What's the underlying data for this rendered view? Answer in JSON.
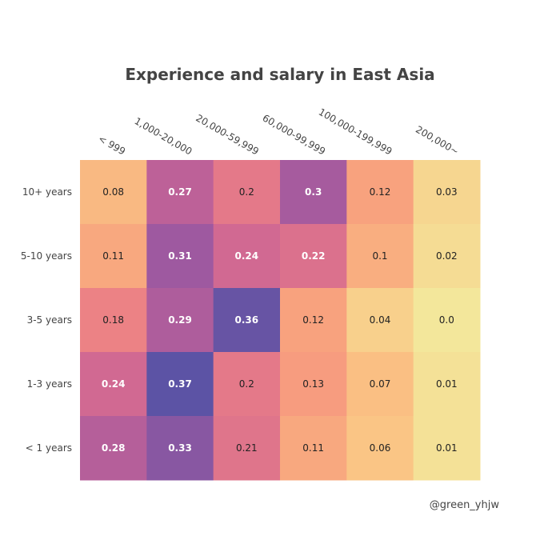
{
  "chart_data": {
    "type": "heatmap",
    "title": "Experience and salary in East Asia",
    "x_categories": [
      "< 999",
      "1,000-20,000",
      "20,000-59,999",
      "60,000-99,999",
      "100,000-199,999",
      "200,000~"
    ],
    "y_categories": [
      "10+ years",
      "5-10 years",
      "3-5 years",
      "1-3 years",
      "< 1 years"
    ],
    "x_axis_side": "top",
    "values": [
      [
        0.08,
        0.27,
        0.2,
        0.3,
        0.12,
        0.03
      ],
      [
        0.11,
        0.31,
        0.24,
        0.22,
        0.1,
        0.02
      ],
      [
        0.18,
        0.29,
        0.36,
        0.12,
        0.04,
        0.0
      ],
      [
        0.24,
        0.37,
        0.2,
        0.13,
        0.07,
        0.01
      ],
      [
        0.28,
        0.33,
        0.21,
        0.11,
        0.06,
        0.01
      ]
    ],
    "value_labels": [
      [
        "0.08",
        "0.27",
        "0.2",
        "0.3",
        "0.12",
        "0.03"
      ],
      [
        "0.11",
        "0.31",
        "0.24",
        "0.22",
        "0.1",
        "0.02"
      ],
      [
        "0.18",
        "0.29",
        "0.36",
        "0.12",
        "0.04",
        "0.0"
      ],
      [
        "0.24",
        "0.37",
        "0.2",
        "0.13",
        "0.07",
        "0.01"
      ],
      [
        "0.28",
        "0.33",
        "0.21",
        "0.11",
        "0.06",
        "0.01"
      ]
    ],
    "colorscale": "sunsetdark",
    "colorscale_stops": [
      "#f3e79b",
      "#fac484",
      "#f8a07e",
      "#eb7f86",
      "#ce6693",
      "#a059a0",
      "#5c53a5"
    ],
    "zrange": [
      0,
      0.37
    ],
    "grid": false,
    "legend": "none"
  },
  "annotation": {
    "credit": "@green_yhjw"
  },
  "colors": {
    "title": "#444444",
    "tick": "#444444",
    "label_dark": "#222222",
    "label_light": "#ffffff"
  }
}
